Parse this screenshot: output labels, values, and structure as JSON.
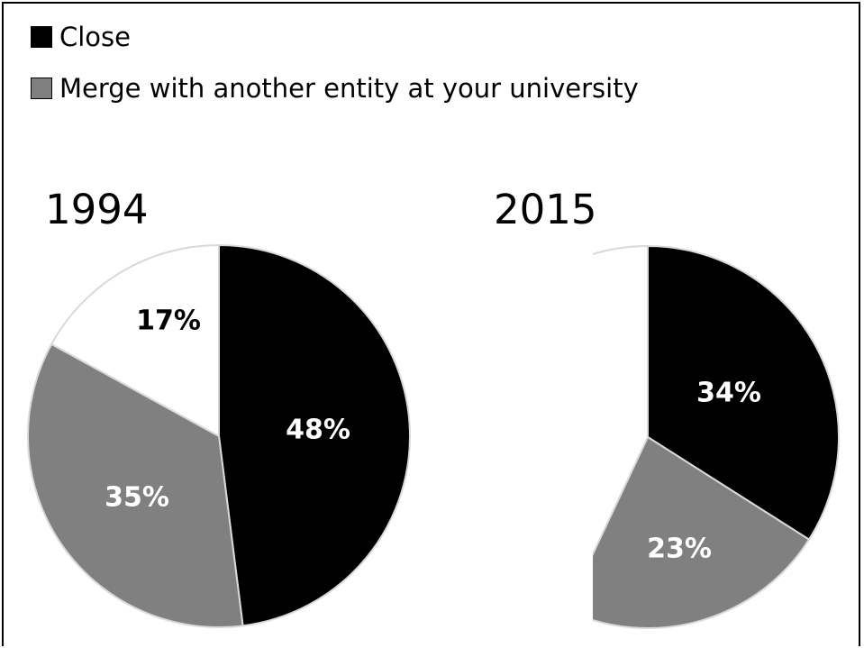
{
  "legend": [
    {
      "label": "Close",
      "color": "#000000"
    },
    {
      "label": "Merge with another entity at your university",
      "color": "#808080"
    }
  ],
  "chart_data": [
    {
      "type": "pie",
      "title": "1994",
      "slices": [
        {
          "series": "Close",
          "value": 48,
          "label": "48%",
          "color": "#000000",
          "label_color": "#ffffff"
        },
        {
          "series": "Merge with another entity at your university",
          "value": 35,
          "label": "35%",
          "color": "#808080",
          "label_color": "#ffffff"
        },
        {
          "series": "",
          "value": 17,
          "label": "17%",
          "color": "#ffffff",
          "label_color": "#000000"
        }
      ]
    },
    {
      "type": "pie",
      "title": "2015",
      "slices": [
        {
          "series": "Close",
          "value": 34,
          "label": "34%",
          "color": "#000000",
          "label_color": "#ffffff"
        },
        {
          "series": "Merge with another entity at your university",
          "value": 23,
          "label": "23%",
          "color": "#808080",
          "label_color": "#ffffff"
        },
        {
          "series": "",
          "value": 43,
          "label": "",
          "color": "#ffffff",
          "label_color": "#000000"
        }
      ]
    }
  ]
}
